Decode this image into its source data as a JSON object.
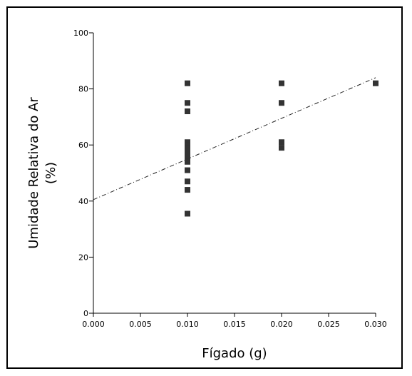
{
  "chart_data": {
    "type": "scatter",
    "xlabel": "Fígado (g)",
    "ylabel_lines": [
      "Umidade Relativa do Ar",
      "(%)"
    ],
    "xlim": [
      0,
      0.03
    ],
    "ylim": [
      0,
      100
    ],
    "xticks": [
      "0.000",
      "0.005",
      "0.010",
      "0.015",
      "0.020",
      "0.025",
      "0.030"
    ],
    "xtick_values": [
      0,
      0.005,
      0.01,
      0.015,
      0.02,
      0.025,
      0.03
    ],
    "yticks": [
      "0",
      "20",
      "40",
      "60",
      "80",
      "100"
    ],
    "ytick_values": [
      0,
      20,
      40,
      60,
      80,
      100
    ],
    "grid": false,
    "points": [
      {
        "x": 0.01,
        "y": 82
      },
      {
        "x": 0.01,
        "y": 75
      },
      {
        "x": 0.01,
        "y": 72
      },
      {
        "x": 0.01,
        "y": 61
      },
      {
        "x": 0.01,
        "y": 60
      },
      {
        "x": 0.01,
        "y": 59
      },
      {
        "x": 0.01,
        "y": 58
      },
      {
        "x": 0.01,
        "y": 57
      },
      {
        "x": 0.01,
        "y": 55
      },
      {
        "x": 0.01,
        "y": 54
      },
      {
        "x": 0.01,
        "y": 51
      },
      {
        "x": 0.01,
        "y": 47
      },
      {
        "x": 0.01,
        "y": 44
      },
      {
        "x": 0.01,
        "y": 35.5
      },
      {
        "x": 0.02,
        "y": 82
      },
      {
        "x": 0.02,
        "y": 75
      },
      {
        "x": 0.02,
        "y": 61
      },
      {
        "x": 0.02,
        "y": 59
      },
      {
        "x": 0.03,
        "y": 82
      }
    ],
    "trendline": {
      "x": [
        0,
        0.03
      ],
      "y": [
        40.5,
        84
      ],
      "style": "dash-dot"
    },
    "marker_color": "#333333",
    "axis_color": "#000000"
  }
}
